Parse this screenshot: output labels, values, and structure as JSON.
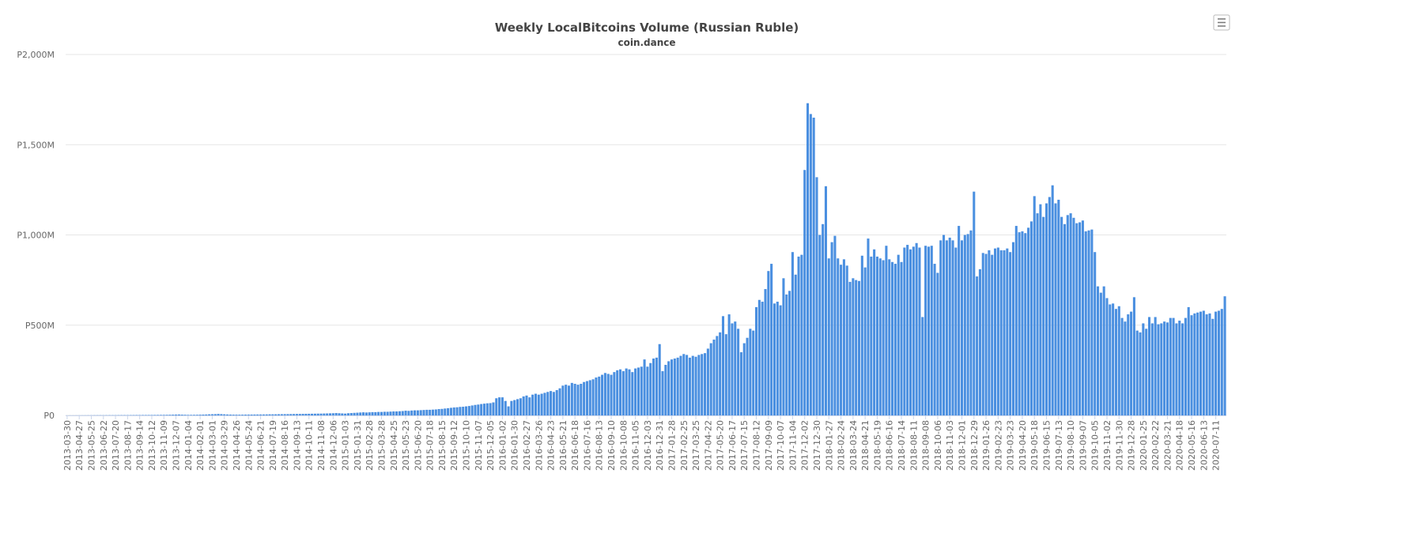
{
  "chart_data": {
    "type": "bar",
    "title": "Weekly LocalBitcoins Volume (Russian Ruble)",
    "subtitle": "coin.dance",
    "color": "#4a8fe0",
    "grid": true,
    "ylim": [
      0,
      2000000000.0
    ],
    "yticks": [
      {
        "value": 0,
        "label": "P0"
      },
      {
        "value": 500000000.0,
        "label": "P500M"
      },
      {
        "value": 1000000000.0,
        "label": "P1,000M"
      },
      {
        "value": 1500000000.0,
        "label": "P1,500M"
      },
      {
        "value": 2000000000.0,
        "label": "P2,000M"
      }
    ],
    "categories": [
      "2013-03-30",
      null,
      null,
      null,
      "2013-04-27",
      null,
      null,
      null,
      "2013-05-25",
      null,
      null,
      null,
      "2013-06-22",
      null,
      null,
      null,
      "2013-07-20",
      null,
      null,
      null,
      "2013-08-17",
      null,
      null,
      null,
      "2013-09-14",
      null,
      null,
      null,
      "2013-10-12",
      null,
      null,
      null,
      "2013-11-09",
      null,
      null,
      null,
      "2013-12-07",
      null,
      null,
      null,
      "2014-01-04",
      null,
      null,
      null,
      "2014-02-01",
      null,
      null,
      null,
      "2014-03-01",
      null,
      null,
      null,
      "2014-03-29",
      null,
      null,
      null,
      "2014-04-26",
      null,
      null,
      null,
      "2014-05-24",
      null,
      null,
      null,
      "2014-06-21",
      null,
      null,
      null,
      "2014-07-19",
      null,
      null,
      null,
      "2014-08-16",
      null,
      null,
      null,
      "2014-09-13",
      null,
      null,
      null,
      "2014-10-11",
      null,
      null,
      null,
      "2014-11-08",
      null,
      null,
      null,
      "2014-12-06",
      null,
      null,
      null,
      "2015-01-03",
      null,
      null,
      null,
      "2015-01-31",
      null,
      null,
      null,
      "2015-02-28",
      null,
      null,
      null,
      "2015-03-28",
      null,
      null,
      null,
      "2015-04-25",
      null,
      null,
      null,
      "2015-05-23",
      null,
      null,
      null,
      "2015-06-20",
      null,
      null,
      null,
      "2015-07-18",
      null,
      null,
      null,
      "2015-08-15",
      null,
      null,
      null,
      "2015-09-12",
      null,
      null,
      null,
      "2015-10-10",
      null,
      null,
      null,
      "2015-11-07",
      null,
      null,
      null,
      "2015-12-05",
      null,
      null,
      null,
      "2016-01-02",
      null,
      null,
      null,
      "2016-01-30",
      null,
      null,
      null,
      "2016-02-27",
      null,
      null,
      null,
      "2016-03-26",
      null,
      null,
      null,
      "2016-04-23",
      null,
      null,
      null,
      "2016-05-21",
      null,
      null,
      null,
      "2016-06-18",
      null,
      null,
      null,
      "2016-07-16",
      null,
      null,
      null,
      "2016-08-13",
      null,
      null,
      null,
      "2016-09-10",
      null,
      null,
      null,
      "2016-10-08",
      null,
      null,
      null,
      "2016-11-05",
      null,
      null,
      null,
      "2016-12-03",
      null,
      null,
      null,
      "2016-12-31",
      null,
      null,
      null,
      "2017-01-28",
      null,
      null,
      null,
      "2017-02-25",
      null,
      null,
      null,
      "2017-03-25",
      null,
      null,
      null,
      "2017-04-22",
      null,
      null,
      null,
      "2017-05-20",
      null,
      null,
      null,
      "2017-06-17",
      null,
      null,
      null,
      "2017-07-15",
      null,
      null,
      null,
      "2017-08-12",
      null,
      null,
      null,
      "2017-09-09",
      null,
      null,
      null,
      "2017-10-07",
      null,
      null,
      null,
      "2017-11-04",
      null,
      null,
      null,
      "2017-12-02",
      null,
      null,
      null,
      "2017-12-30",
      null,
      null,
      null,
      "2018-01-27",
      null,
      null,
      null,
      "2018-02-24",
      null,
      null,
      null,
      "2018-03-24",
      null,
      null,
      null,
      "2018-04-21",
      null,
      null,
      null,
      "2018-05-19",
      null,
      null,
      null,
      "2018-06-16",
      null,
      null,
      null,
      "2018-07-14",
      null,
      null,
      null,
      "2018-08-11",
      null,
      null,
      null,
      "2018-09-08",
      null,
      null,
      null,
      "2018-10-06",
      null,
      null,
      null,
      "2018-11-03",
      null,
      null,
      null,
      "2018-12-01",
      null,
      null,
      null,
      "2018-12-29",
      null,
      null,
      null,
      "2019-01-26",
      null,
      null,
      null,
      "2019-02-23",
      null,
      null,
      null,
      "2019-03-23",
      null,
      null,
      null,
      "2019-04-20",
      null,
      null,
      null,
      "2019-05-18",
      null,
      null,
      null,
      "2019-06-15",
      null,
      null,
      null,
      "2019-07-13",
      null,
      null,
      null,
      "2019-08-10",
      null,
      null,
      null,
      "2019-09-07",
      null,
      null,
      null,
      "2019-10-05",
      null,
      null,
      null,
      "2019-11-02",
      null,
      null,
      null,
      "2019-11-30",
      null,
      null,
      null,
      "2019-12-28",
      null,
      null,
      null,
      "2020-01-25",
      null,
      null,
      null,
      "2020-02-22",
      null,
      null,
      null,
      "2020-03-21",
      null,
      null,
      null,
      "2020-04-18",
      null,
      null,
      null,
      "2020-05-16",
      null,
      null,
      null,
      "2020-06-13",
      null,
      null,
      null,
      "2020-07-11",
      null,
      null,
      null
    ],
    "values": [
      200000.0,
      300000.0,
      300000.0,
      400000.0,
      500000.0,
      500000.0,
      600000.0,
      700000.0,
      800000.0,
      900000.0,
      1000000.0,
      1000000.0,
      1000000.0,
      1100000.0,
      1200000.0,
      1200000.0,
      1300000.0,
      1400000.0,
      1500000.0,
      1500000.0,
      1600000.0,
      1700000.0,
      1800000.0,
      2000000.0,
      2000000.0,
      2100000.0,
      2200000.0,
      2300000.0,
      2400000.0,
      2500000.0,
      2600000.0,
      2800000.0,
      3000000.0,
      3200000.0,
      3500000.0,
      4000000.0,
      4500000.0,
      5000000.0,
      4000000.0,
      3500000.0,
      3000000.0,
      3000000.0,
      3200000.0,
      3500000.0,
      4000000.0,
      4500000.0,
      5000000.0,
      6000000.0,
      6500000.0,
      7000000.0,
      8000000.0,
      7000000.0,
      6000000.0,
      5000000.0,
      4500000.0,
      4000000.0,
      4000000.0,
      3800000.0,
      4000000.0,
      4200000.0,
      4500000.0,
      4600000.0,
      4800000.0,
      5000000.0,
      5000000.0,
      5200000.0,
      5500000.0,
      6000000.0,
      6000000.0,
      6200000.0,
      6500000.0,
      6800000.0,
      7000000.0,
      7200000.0,
      7500000.0,
      7800000.0,
      8000000.0,
      8200000.0,
      8500000.0,
      8800000.0,
      9000000.0,
      9200000.0,
      9500000.0,
      9800000.0,
      10000000.0,
      10500000.0,
      11000000.0,
      11500000.0,
      12000000.0,
      13000000.0,
      12000000.0,
      11000000.0,
      10000000.0,
      12000000.0,
      13000000.0,
      14000000.0,
      15000000.0,
      16000000.0,
      17000000.0,
      16000000.0,
      17000000.0,
      18000000.0,
      18000000.0,
      19000000.0,
      19000000.0,
      20000000.0,
      20000000.0,
      21000000.0,
      22000000.0,
      22000000.0,
      23000000.0,
      24000000.0,
      26000000.0,
      25000000.0,
      27000000.0,
      28000000.0,
      28000000.0,
      29000000.0,
      30000000.0,
      31000000.0,
      31000000.0,
      32000000.0,
      33000000.0,
      35000000.0,
      36000000.0,
      38000000.0,
      40000000.0,
      42000000.0,
      44000000.0,
      45000000.0,
      47000000.0,
      48000000.0,
      50000000.0,
      52000000.0,
      55000000.0,
      58000000.0,
      60000000.0,
      63000000.0,
      65000000.0,
      67000000.0,
      68000000.0,
      72000000.0,
      95000000.0,
      100000000.0,
      100000000.0,
      80000000.0,
      50000000.0,
      80000000.0,
      85000000.0,
      90000000.0,
      95000000.0,
      105000000.0,
      110000000.0,
      100000000.0,
      115000000.0,
      120000000.0,
      115000000.0,
      120000000.0,
      125000000.0,
      130000000.0,
      135000000.0,
      130000000.0,
      140000000.0,
      150000000.0,
      165000000.0,
      170000000.0,
      165000000.0,
      180000000.0,
      175000000.0,
      170000000.0,
      175000000.0,
      185000000.0,
      190000000.0,
      195000000.0,
      200000000.0,
      210000000.0,
      215000000.0,
      225000000.0,
      235000000.0,
      230000000.0,
      225000000.0,
      240000000.0,
      250000000.0,
      255000000.0,
      245000000.0,
      260000000.0,
      255000000.0,
      240000000.0,
      260000000.0,
      265000000.0,
      270000000.0,
      310000000.0,
      270000000.0,
      290000000.0,
      315000000.0,
      320000000.0,
      395000000.0,
      245000000.0,
      280000000.0,
      300000000.0,
      310000000.0,
      315000000.0,
      320000000.0,
      330000000.0,
      340000000.0,
      335000000.0,
      320000000.0,
      330000000.0,
      325000000.0,
      335000000.0,
      340000000.0,
      345000000.0,
      370000000.0,
      400000000.0,
      420000000.0,
      440000000.0,
      460000000.0,
      550000000.0,
      450000000.0,
      560000000.0,
      510000000.0,
      520000000.0,
      480000000.0,
      350000000.0,
      400000000.0,
      430000000.0,
      480000000.0,
      470000000.0,
      600000000.0,
      640000000.0,
      630000000.0,
      700000000.0,
      800000000.0,
      840000000.0,
      620000000.0,
      630000000.0,
      610000000.0,
      760000000.0,
      670000000.0,
      690000000.0,
      905000000.0,
      780000000.0,
      880000000.0,
      890000000.0,
      1360000000.0,
      1730000000.0,
      1670000000.0,
      1650000000.0,
      1320000000.0,
      1000000000.0,
      1060000000.0,
      1270000000.0,
      870000000.0,
      960000000.0,
      995000000.0,
      870000000.0,
      835000000.0,
      865000000.0,
      830000000.0,
      740000000.0,
      760000000.0,
      750000000.0,
      745000000.0,
      885000000.0,
      820000000.0,
      980000000.0,
      880000000.0,
      920000000.0,
      880000000.0,
      870000000.0,
      860000000.0,
      940000000.0,
      865000000.0,
      850000000.0,
      840000000.0,
      890000000.0,
      850000000.0,
      930000000.0,
      945000000.0,
      920000000.0,
      935000000.0,
      955000000.0,
      930000000.0,
      545000000.0,
      940000000.0,
      935000000.0,
      940000000.0,
      840000000.0,
      790000000.0,
      970000000.0,
      1000000000.0,
      970000000.0,
      985000000.0,
      970000000.0,
      930000000.0,
      1050000000.0,
      970000000.0,
      1000000000.0,
      1005000000.0,
      1025000000.0,
      1240000000.0,
      770000000.0,
      810000000.0,
      900000000.0,
      895000000.0,
      915000000.0,
      890000000.0,
      925000000.0,
      930000000.0,
      915000000.0,
      915000000.0,
      925000000.0,
      905000000.0,
      960000000.0,
      1050000000.0,
      1015000000.0,
      1020000000.0,
      1010000000.0,
      1040000000.0,
      1075000000.0,
      1215000000.0,
      1120000000.0,
      1170000000.0,
      1100000000.0,
      1175000000.0,
      1210000000.0,
      1275000000.0,
      1175000000.0,
      1195000000.0,
      1100000000.0,
      1060000000.0,
      1110000000.0,
      1120000000.0,
      1095000000.0,
      1065000000.0,
      1070000000.0,
      1080000000.0,
      1020000000.0,
      1025000000.0,
      1030000000.0,
      905000000.0,
      715000000.0,
      680000000.0,
      715000000.0,
      650000000.0,
      615000000.0,
      620000000.0,
      590000000.0,
      605000000.0,
      540000000.0,
      520000000.0,
      560000000.0,
      575000000.0,
      655000000.0,
      470000000.0,
      460000000.0,
      510000000.0,
      480000000.0,
      545000000.0,
      510000000.0,
      545000000.0,
      505000000.0,
      510000000.0,
      520000000.0,
      515000000.0,
      540000000.0,
      540000000.0,
      510000000.0,
      525000000.0,
      510000000.0,
      540000000.0,
      600000000.0,
      555000000.0,
      565000000.0,
      570000000.0,
      575000000.0,
      580000000.0,
      560000000.0,
      565000000.0,
      535000000.0,
      575000000.0,
      580000000.0,
      590000000.0,
      660000000.0
    ]
  }
}
